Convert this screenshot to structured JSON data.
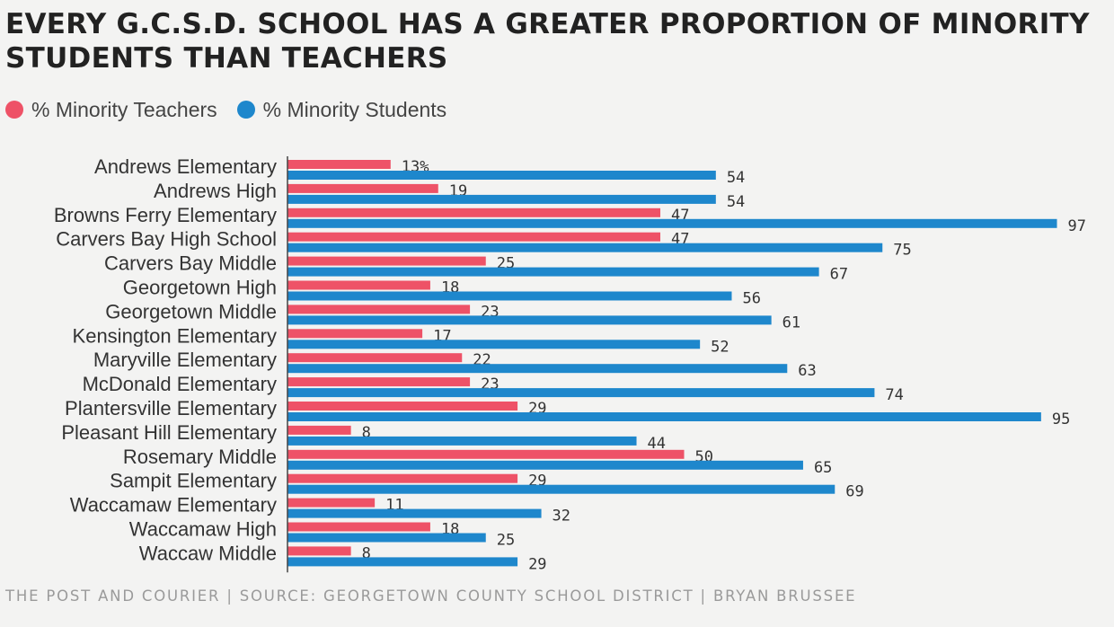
{
  "chart_data": {
    "type": "bar",
    "orientation": "horizontal",
    "title": "EVERY G.C.S.D. SCHOOL HAS A GREATER PROPORTION OF MINORITY STUDENTS THAN TEACHERS",
    "xlim": [
      0,
      100
    ],
    "categories": [
      "Andrews Elementary",
      "Andrews High",
      "Browns Ferry Elementary",
      "Carvers Bay High School",
      "Carvers Bay Middle",
      "Georgetown High",
      "Georgetown Middle",
      "Kensington Elementary",
      "Maryville Elementary",
      "McDonald Elementary",
      "Plantersville Elementary",
      "Pleasant Hill Elementary",
      "Rosemary Middle",
      "Sampit Elementary",
      "Waccamaw Elementary",
      "Waccamaw High",
      "Waccaw Middle"
    ],
    "series": [
      {
        "name": "% Minority Teachers",
        "color": "#ee5267",
        "values": [
          13,
          19,
          47,
          47,
          25,
          18,
          23,
          17,
          22,
          23,
          29,
          8,
          50,
          29,
          11,
          18,
          8
        ],
        "labels": [
          "13%",
          "19",
          "47",
          "47",
          "25",
          "18",
          "23",
          "17",
          "22",
          "23",
          "29",
          "8",
          "50",
          "29",
          "11",
          "18",
          "8"
        ]
      },
      {
        "name": "% Minority Students",
        "color": "#1e87cc",
        "values": [
          54,
          54,
          97,
          75,
          67,
          56,
          61,
          52,
          63,
          74,
          95,
          44,
          65,
          69,
          32,
          25,
          29
        ],
        "labels": [
          "54",
          "54",
          "97",
          "75",
          "67",
          "56",
          "61",
          "52",
          "63",
          "74",
          "95",
          "44",
          "65",
          "69",
          "32",
          "25",
          "29"
        ]
      }
    ],
    "legend_position": "top-left"
  },
  "footer": "THE POST AND COURIER | SOURCE: GEORGETOWN COUNTY SCHOOL DISTRICT | BRYAN BRUSSEE"
}
